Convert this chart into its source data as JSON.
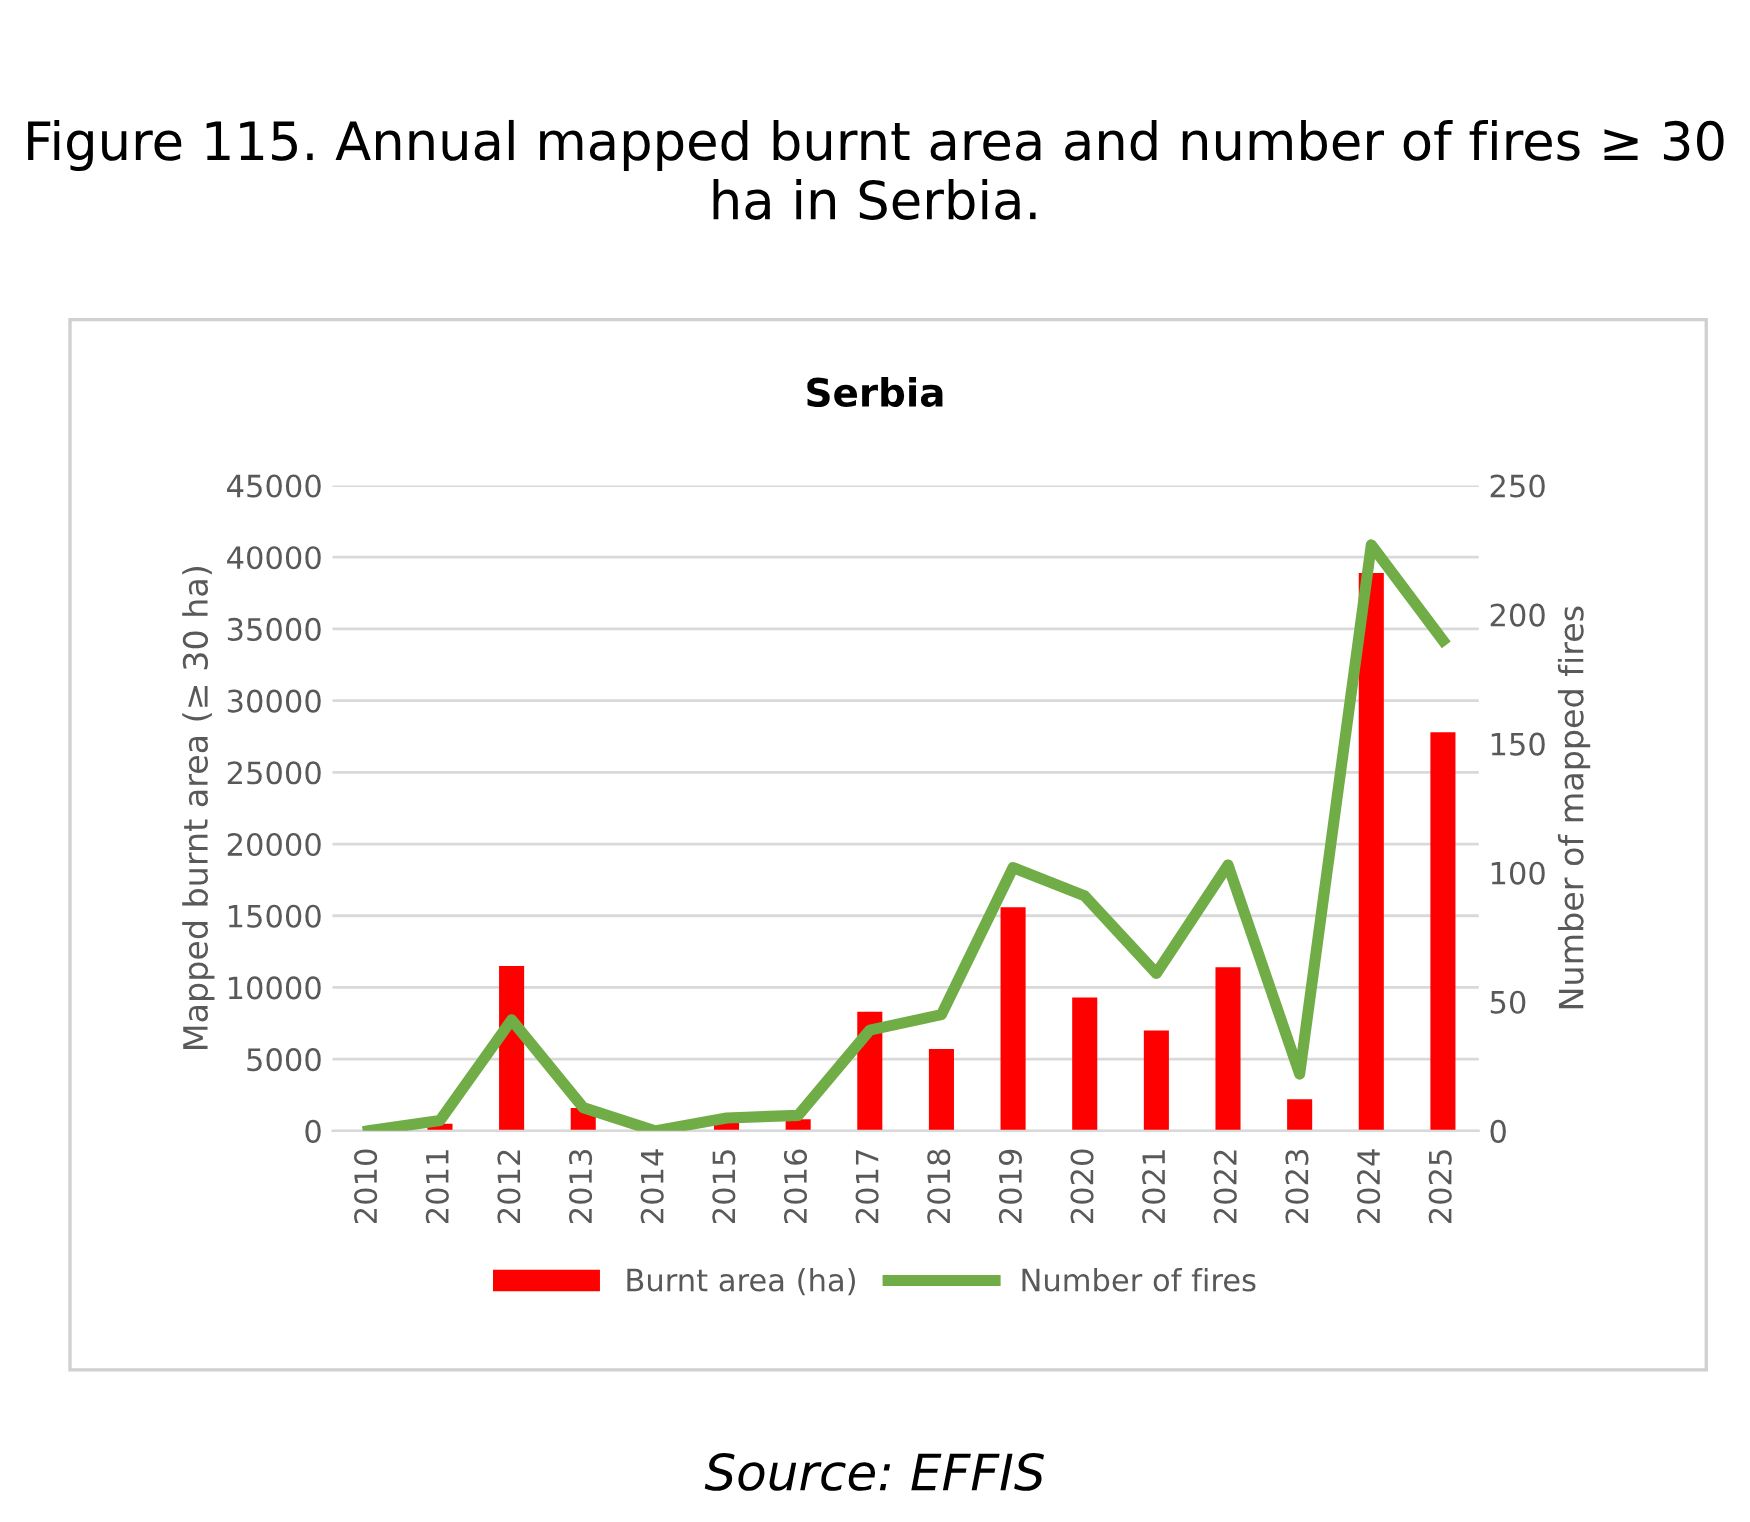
{
  "chart_data": {
    "type": "bar",
    "title": "Figure 115. Annual mapped burnt area and number of fires ≥ 30 ha in Serbia.",
    "subtitle": "Serbia",
    "ylabel": "Mapped burnt area (≥ 30 ha)",
    "y2label": "Number of mapped fires",
    "categories": [
      "2010",
      "2011",
      "2012",
      "2013",
      "2014",
      "2015",
      "2016",
      "2017",
      "2018",
      "2019",
      "2020",
      "2021",
      "2022",
      "2023",
      "2024",
      "2025"
    ],
    "series": [
      {
        "name": "Burnt area (ha)",
        "color": "#ff0000",
        "values": [
          0,
          500,
          11500,
          1600,
          0,
          600,
          800,
          8300,
          5700,
          15600,
          9300,
          7000,
          11400,
          2200,
          38900,
          27800
        ]
      },
      {
        "name": "Number of fires",
        "type": "line",
        "axis": "y2",
        "color": "#70ad47",
        "values": [
          0,
          4,
          43,
          9,
          0,
          5,
          6,
          39,
          45,
          102,
          91,
          61,
          103,
          22,
          227,
          190
        ]
      }
    ],
    "ylim": [
      0,
      45000
    ],
    "yticks": [
      0,
      5000,
      10000,
      15000,
      20000,
      25000,
      30000,
      35000,
      40000,
      45000
    ],
    "y2lim": [
      0,
      250
    ],
    "y2ticks": [
      0,
      50,
      100,
      150,
      200,
      250
    ],
    "grid": "y",
    "legend": "bottom",
    "annotations": [
      "Source: EFFIS"
    ]
  }
}
